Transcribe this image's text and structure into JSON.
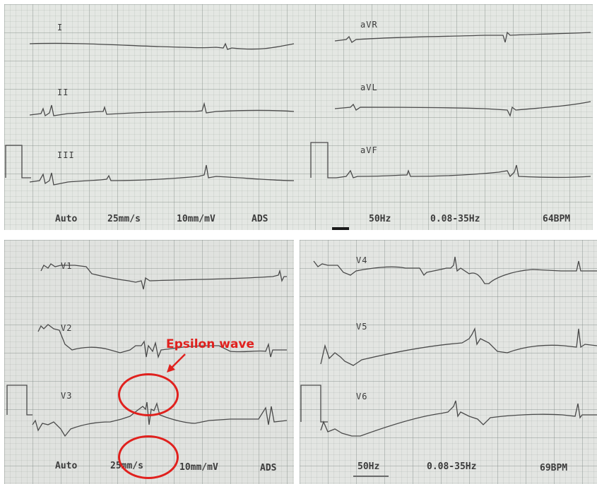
{
  "top_panel": {
    "leads": [
      "I",
      "II",
      "III",
      "aVR",
      "aVL",
      "aVF"
    ],
    "footer": {
      "mode": "Auto",
      "speed": "25mm/s",
      "gain": "10mm/mV",
      "filter": "ADS",
      "mains": "50Hz",
      "bandwidth": "0.08-35Hz",
      "rate": "64BPM"
    }
  },
  "bottom_left": {
    "leads": [
      "V1",
      "V2",
      "V3"
    ],
    "footer": {
      "mode": "Auto",
      "speed": "25mm/s",
      "gain": "10mm/mV",
      "filter": "ADS"
    }
  },
  "bottom_right": {
    "leads": [
      "V4",
      "V5",
      "V6"
    ],
    "footer": {
      "mains": "50Hz",
      "bandwidth": "0.08-35Hz",
      "rate": "69BPM"
    }
  },
  "annotation": {
    "label": "Epsilon wave",
    "color": "#e0211e"
  }
}
